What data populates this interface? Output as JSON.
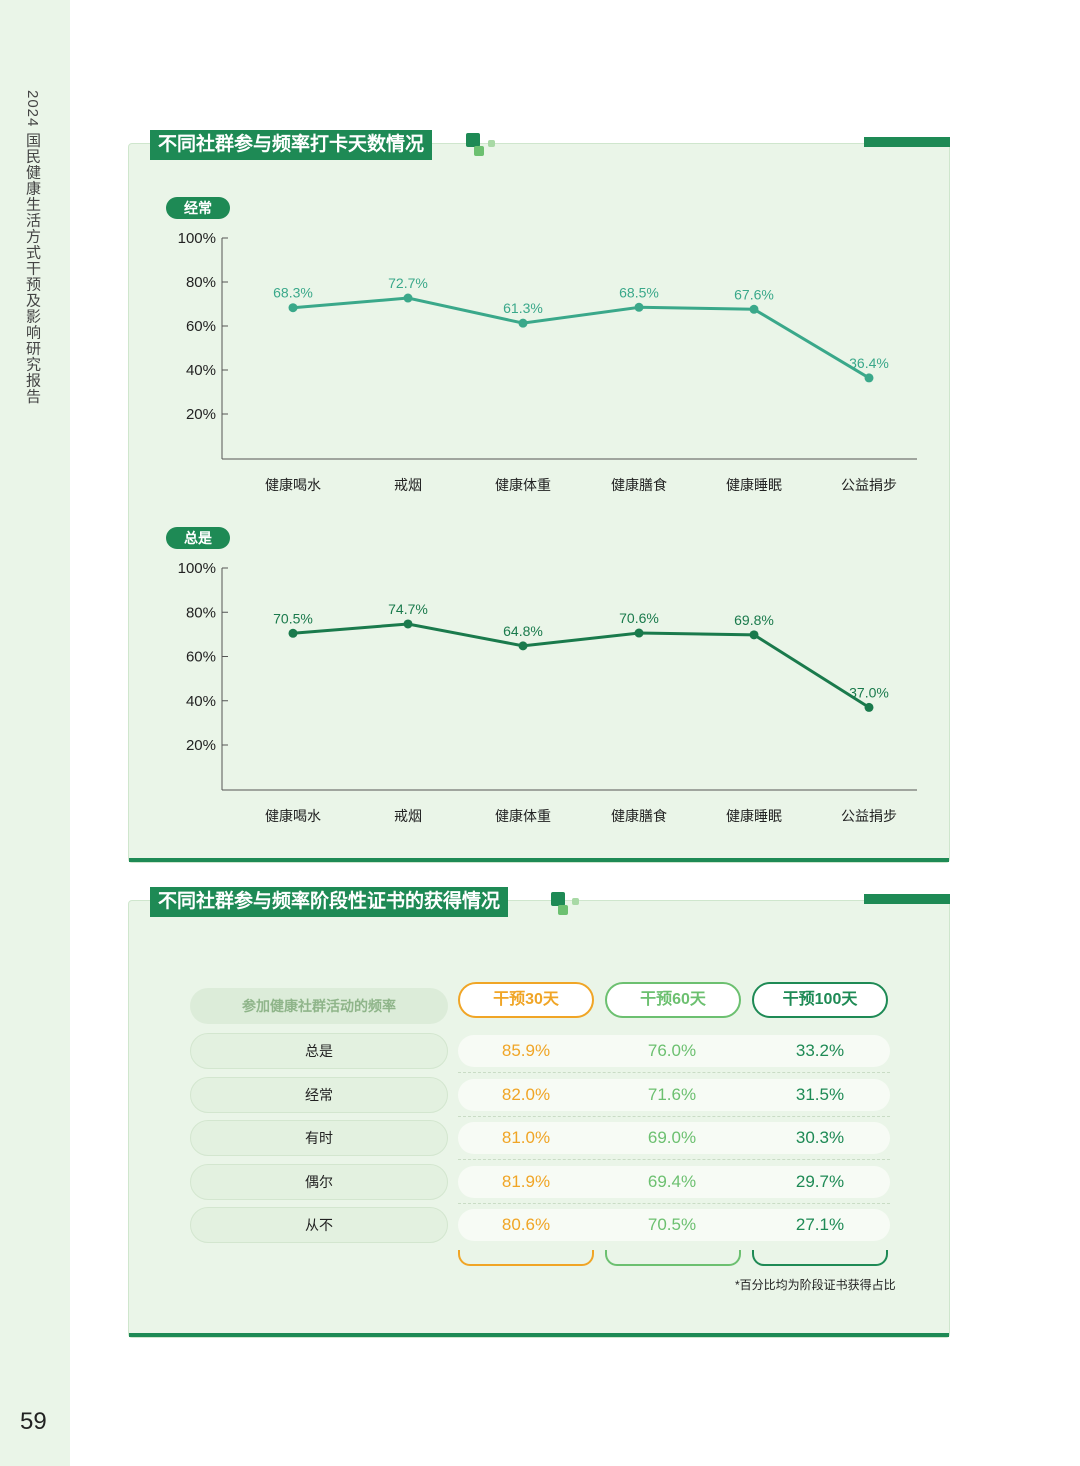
{
  "sidebar": {
    "report_title": "2024 国民健康生活方式干预及影响研究报告",
    "page_number": "59"
  },
  "section1": {
    "title": "不同社群参与频率打卡天数情况",
    "charts": [
      {
        "label": "经常"
      },
      {
        "label": "总是"
      }
    ]
  },
  "chart_data": [
    {
      "type": "line",
      "label": "经常",
      "categories": [
        "健康喝水",
        "戒烟",
        "健康体重",
        "健康膳食",
        "健康睡眠",
        "公益捐步"
      ],
      "values": [
        68.3,
        72.7,
        61.3,
        68.5,
        67.6,
        36.4
      ],
      "value_labels": [
        "68.3%",
        "72.7%",
        "61.3%",
        "68.5%",
        "67.6%",
        "36.4%"
      ],
      "y_ticks": [
        "100%",
        "80%",
        "60%",
        "40%",
        "20%"
      ],
      "ylim": [
        0,
        100
      ],
      "color": "#3aa88a"
    },
    {
      "type": "line",
      "label": "总是",
      "categories": [
        "健康喝水",
        "戒烟",
        "健康体重",
        "健康膳食",
        "健康睡眠",
        "公益捐步"
      ],
      "values": [
        70.5,
        74.7,
        64.8,
        70.6,
        69.8,
        37.0
      ],
      "value_labels": [
        "70.5%",
        "74.7%",
        "64.8%",
        "70.6%",
        "69.8%",
        "37.0%"
      ],
      "y_ticks": [
        "100%",
        "80%",
        "60%",
        "40%",
        "20%"
      ],
      "ylim": [
        0,
        100
      ],
      "color": "#1a7a4c"
    },
    {
      "type": "table",
      "title": "不同社群参与频率阶段性证书的获得情况",
      "row_header": "参加健康社群活动的频率",
      "columns": [
        "干预30天",
        "干预60天",
        "干预100天"
      ],
      "column_colors": [
        "#f0a526",
        "#6cc070",
        "#1e8a55"
      ],
      "rows": [
        {
          "label": "总是",
          "values": [
            "85.9%",
            "76.0%",
            "33.2%"
          ]
        },
        {
          "label": "经常",
          "values": [
            "82.0%",
            "71.6%",
            "31.5%"
          ]
        },
        {
          "label": "有时",
          "values": [
            "81.0%",
            "69.0%",
            "30.3%"
          ]
        },
        {
          "label": "偶尔",
          "values": [
            "81.9%",
            "69.4%",
            "29.7%"
          ]
        },
        {
          "label": "从不",
          "values": [
            "80.6%",
            "70.5%",
            "27.1%"
          ]
        }
      ],
      "footnote": "*百分比均为阶段证书获得占比"
    }
  ]
}
